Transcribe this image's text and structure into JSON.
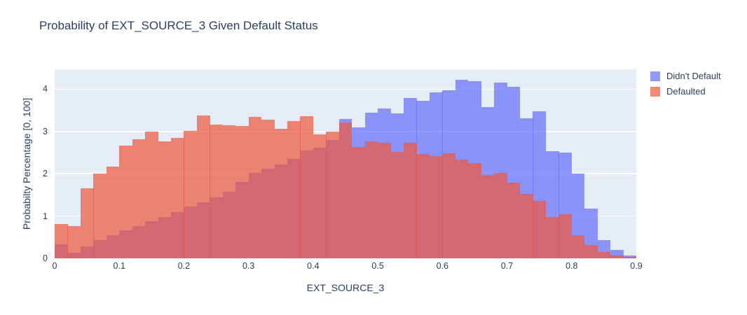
{
  "title": "Probability of EXT_SOURCE_3 Given Default Status",
  "colors": {
    "plot_background": "#E5ECF6",
    "grid": "#FFFFFF",
    "text": "#2a3f5f",
    "didnt_default": "#636EFA",
    "defaulted": "#EF553B"
  },
  "legend": {
    "items": [
      {
        "label": "Didn't Default",
        "color": "#636EFA"
      },
      {
        "label": "Defaulted",
        "color": "#EF553B"
      }
    ]
  },
  "chart_data": {
    "type": "bar",
    "subtype": "overlaid-histogram",
    "title": "Probability of EXT_SOURCE_3 Given Default Status",
    "xlabel": "EXT_SOURCE_3",
    "ylabel": "Probabilty Percentage [0, 100]",
    "xlim": [
      0,
      0.9
    ],
    "ylim": [
      0,
      4.47
    ],
    "grid": true,
    "legend_position": "top-right-outside",
    "bin_start": 0,
    "bin_width": 0.02,
    "x_ticks": [
      0,
      0.1,
      0.2,
      0.3,
      0.4,
      0.5,
      0.6,
      0.7,
      0.8,
      0.9
    ],
    "x_tick_labels": [
      "0",
      "0.1",
      "0.2",
      "0.3",
      "0.4",
      "0.5",
      "0.6",
      "0.7",
      "0.8",
      "0.9"
    ],
    "y_ticks": [
      0,
      1,
      2,
      3,
      4
    ],
    "y_tick_labels": [
      "0",
      "1",
      "2",
      "3",
      "4"
    ],
    "series": [
      {
        "name": "Didn't Default",
        "color": "#636EFA",
        "opacity": 0.7,
        "values": [
          0.33,
          0.13,
          0.28,
          0.43,
          0.55,
          0.66,
          0.76,
          0.87,
          0.98,
          1.1,
          1.22,
          1.33,
          1.44,
          1.57,
          1.8,
          2.02,
          2.12,
          2.22,
          2.35,
          2.55,
          2.62,
          2.8,
          3.3,
          3.1,
          3.45,
          3.55,
          3.43,
          3.79,
          3.72,
          3.93,
          3.97,
          4.22,
          4.19,
          3.57,
          4.15,
          4.06,
          3.31,
          3.47,
          2.53,
          2.5,
          2.0,
          1.17,
          0.43,
          0.2,
          0.07
        ]
      },
      {
        "name": "Defaulted",
        "color": "#EF553B",
        "opacity": 0.7,
        "values": [
          0.81,
          0.77,
          1.65,
          2.0,
          2.17,
          2.66,
          2.81,
          3.0,
          2.76,
          2.85,
          3.01,
          3.38,
          3.17,
          3.14,
          3.13,
          3.35,
          3.28,
          3.07,
          3.25,
          3.36,
          2.93,
          2.99,
          3.22,
          2.63,
          2.76,
          2.73,
          2.51,
          2.73,
          2.47,
          2.41,
          2.48,
          2.33,
          2.25,
          1.97,
          2.02,
          1.78,
          1.53,
          1.35,
          0.98,
          1.05,
          0.55,
          0.32,
          0.15,
          0.07,
          0.03
        ]
      }
    ]
  }
}
